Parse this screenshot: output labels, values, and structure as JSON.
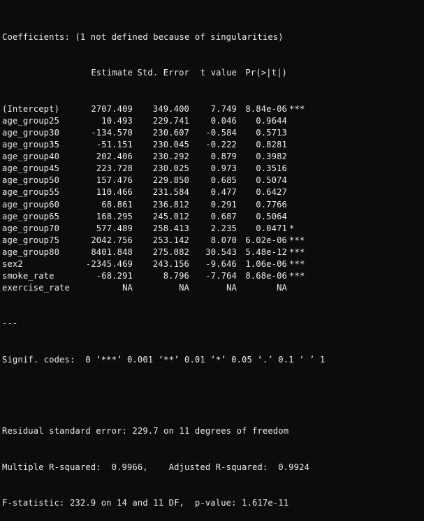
{
  "console": {
    "coef_title": "Coefficients: (1 not defined because of singularities)",
    "header": {
      "estimate": "Estimate",
      "std_error": "Std. Error",
      "t_value": "t value",
      "p_value": "Pr(>|t|)"
    },
    "rows": [
      {
        "name": "(Intercept)",
        "estimate": "2707.409",
        "std_error": "349.400",
        "t_value": "7.749",
        "p_value": "8.84e-06",
        "signif": "***"
      },
      {
        "name": "age_group25",
        "estimate": "10.493",
        "std_error": "229.741",
        "t_value": "0.046",
        "p_value": "0.9644",
        "signif": ""
      },
      {
        "name": "age_group30",
        "estimate": "-134.570",
        "std_error": "230.607",
        "t_value": "-0.584",
        "p_value": "0.5713",
        "signif": ""
      },
      {
        "name": "age_group35",
        "estimate": "-51.151",
        "std_error": "230.045",
        "t_value": "-0.222",
        "p_value": "0.8281",
        "signif": ""
      },
      {
        "name": "age_group40",
        "estimate": "202.406",
        "std_error": "230.292",
        "t_value": "0.879",
        "p_value": "0.3982",
        "signif": ""
      },
      {
        "name": "age_group45",
        "estimate": "223.728",
        "std_error": "230.025",
        "t_value": "0.973",
        "p_value": "0.3516",
        "signif": ""
      },
      {
        "name": "age_group50",
        "estimate": "157.476",
        "std_error": "229.850",
        "t_value": "0.685",
        "p_value": "0.5074",
        "signif": ""
      },
      {
        "name": "age_group55",
        "estimate": "110.466",
        "std_error": "231.584",
        "t_value": "0.477",
        "p_value": "0.6427",
        "signif": ""
      },
      {
        "name": "age_group60",
        "estimate": "68.861",
        "std_error": "236.812",
        "t_value": "0.291",
        "p_value": "0.7766",
        "signif": ""
      },
      {
        "name": "age_group65",
        "estimate": "168.295",
        "std_error": "245.012",
        "t_value": "0.687",
        "p_value": "0.5064",
        "signif": ""
      },
      {
        "name": "age_group70",
        "estimate": "577.489",
        "std_error": "258.413",
        "t_value": "2.235",
        "p_value": "0.0471",
        "signif": "*"
      },
      {
        "name": "age_group75",
        "estimate": "2042.756",
        "std_error": "253.142",
        "t_value": "8.070",
        "p_value": "6.02e-06",
        "signif": "***"
      },
      {
        "name": "age_group80",
        "estimate": "8401.848",
        "std_error": "275.082",
        "t_value": "30.543",
        "p_value": "5.48e-12",
        "signif": "***"
      },
      {
        "name": "sex2",
        "estimate": "-2345.469",
        "std_error": "243.156",
        "t_value": "-9.646",
        "p_value": "1.06e-06",
        "signif": "***"
      },
      {
        "name": "smoke_rate",
        "estimate": "-68.291",
        "std_error": "8.796",
        "t_value": "-7.764",
        "p_value": "8.68e-06",
        "signif": "***"
      },
      {
        "name": "exercise_rate",
        "estimate": "NA",
        "std_error": "NA",
        "t_value": "NA",
        "p_value": "NA",
        "signif": ""
      }
    ],
    "separator": "---",
    "signif_codes": "Signif. codes:  0 ‘***’ 0.001 ‘**’ 0.01 ‘*’ 0.05 ‘.’ 0.1 ‘ ’ 1",
    "residual_se": "Residual standard error: 229.7 on 11 degrees of freedom",
    "r_squared": "Multiple R-squared:  0.9966,\tAdjusted R-squared:  0.9924 ",
    "f_statistic": "F-statistic: 232.9 on 14 and 11 DF,  p-value: 1.617e-11"
  }
}
